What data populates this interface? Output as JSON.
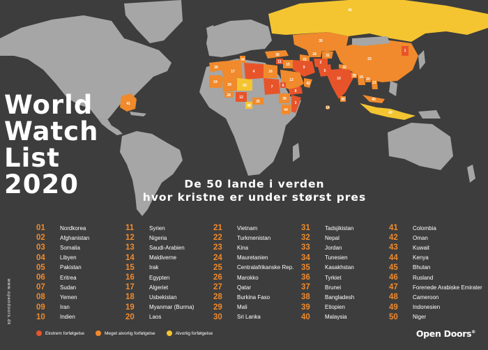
{
  "title_lines": [
    "World",
    "Watch",
    "List",
    "2020"
  ],
  "subtitle_lines": [
    "De 50 lande i verden",
    "hvor kristne er under størst pres"
  ],
  "colors": {
    "background": "#3d3d3d",
    "land": "#a6a6a6",
    "extreme": "#e8542a",
    "very_severe": "#f08a2c",
    "severe": "#f4c531",
    "rank": "#f08a2c"
  },
  "countries": [
    {
      "rank": "01",
      "name": "Nordkorea",
      "level": "extreme"
    },
    {
      "rank": "02",
      "name": "Afghanistan",
      "level": "extreme"
    },
    {
      "rank": "03",
      "name": "Somalia",
      "level": "extreme"
    },
    {
      "rank": "04",
      "name": "Libyen",
      "level": "extreme"
    },
    {
      "rank": "05",
      "name": "Pakistan",
      "level": "extreme"
    },
    {
      "rank": "06",
      "name": "Eritrea",
      "level": "extreme"
    },
    {
      "rank": "07",
      "name": "Sudan",
      "level": "extreme"
    },
    {
      "rank": "08",
      "name": "Yemen",
      "level": "extreme"
    },
    {
      "rank": "09",
      "name": "Iran",
      "level": "extreme"
    },
    {
      "rank": "10",
      "name": "Indien",
      "level": "extreme"
    },
    {
      "rank": "11",
      "name": "Syrien",
      "level": "extreme"
    },
    {
      "rank": "12",
      "name": "Nigeria",
      "level": "extreme"
    },
    {
      "rank": "13",
      "name": "Saudi-Arabien",
      "level": "very_severe"
    },
    {
      "rank": "14",
      "name": "Maldiverne",
      "level": "very_severe"
    },
    {
      "rank": "15",
      "name": "Irak",
      "level": "very_severe"
    },
    {
      "rank": "16",
      "name": "Egypten",
      "level": "very_severe"
    },
    {
      "rank": "17",
      "name": "Algeriet",
      "level": "very_severe"
    },
    {
      "rank": "18",
      "name": "Usbekistan",
      "level": "very_severe"
    },
    {
      "rank": "19",
      "name": "Myanmar (Burma)",
      "level": "very_severe"
    },
    {
      "rank": "20",
      "name": "Laos",
      "level": "very_severe"
    },
    {
      "rank": "21",
      "name": "Vietnam",
      "level": "very_severe"
    },
    {
      "rank": "22",
      "name": "Turkmenistan",
      "level": "very_severe"
    },
    {
      "rank": "23",
      "name": "Kina",
      "level": "very_severe"
    },
    {
      "rank": "24",
      "name": "Mauretanien",
      "level": "very_severe"
    },
    {
      "rank": "25",
      "name": "Centralafrikanske Rep.",
      "level": "very_severe"
    },
    {
      "rank": "26",
      "name": "Marokko",
      "level": "very_severe"
    },
    {
      "rank": "27",
      "name": "Qatar",
      "level": "very_severe"
    },
    {
      "rank": "28",
      "name": "Burkina Faso",
      "level": "very_severe"
    },
    {
      "rank": "29",
      "name": "Mali",
      "level": "very_severe"
    },
    {
      "rank": "30",
      "name": "Sri Lanka",
      "level": "very_severe"
    },
    {
      "rank": "31",
      "name": "Tadsjikistan",
      "level": "very_severe"
    },
    {
      "rank": "32",
      "name": "Nepal",
      "level": "very_severe"
    },
    {
      "rank": "33",
      "name": "Jordan",
      "level": "very_severe"
    },
    {
      "rank": "34",
      "name": "Tunesien",
      "level": "very_severe"
    },
    {
      "rank": "35",
      "name": "Kasakhstan",
      "level": "very_severe"
    },
    {
      "rank": "36",
      "name": "Tyrkiet",
      "level": "very_severe"
    },
    {
      "rank": "37",
      "name": "Brunei",
      "level": "very_severe"
    },
    {
      "rank": "38",
      "name": "Bangladesh",
      "level": "very_severe"
    },
    {
      "rank": "39",
      "name": "Etiopien",
      "level": "very_severe"
    },
    {
      "rank": "40",
      "name": "Malaysia",
      "level": "very_severe"
    },
    {
      "rank": "41",
      "name": "Colombia",
      "level": "very_severe"
    },
    {
      "rank": "42",
      "name": "Oman",
      "level": "very_severe"
    },
    {
      "rank": "43",
      "name": "Kuwait",
      "level": "very_severe"
    },
    {
      "rank": "44",
      "name": "Kenya",
      "level": "very_severe"
    },
    {
      "rank": "45",
      "name": "Bhutan",
      "level": "very_severe"
    },
    {
      "rank": "46",
      "name": "Rusland",
      "level": "severe"
    },
    {
      "rank": "47",
      "name": "Forenede Arabiske Emirater",
      "level": "very_severe"
    },
    {
      "rank": "48",
      "name": "Cameroon",
      "level": "severe"
    },
    {
      "rank": "49",
      "name": "Indonesien",
      "level": "severe"
    },
    {
      "rank": "50",
      "name": "Niger",
      "level": "severe"
    }
  ],
  "legend": [
    {
      "label": "Ekstrem forfølgelse",
      "level": "extreme"
    },
    {
      "label": "Meget alvorlig forfølgelse",
      "level": "very_severe"
    },
    {
      "label": "Alvorlig forfølgelse",
      "level": "severe"
    }
  ],
  "footer_url": "www.opendoors.dk",
  "logo": {
    "text": "Open Doors",
    "mark": "®"
  }
}
